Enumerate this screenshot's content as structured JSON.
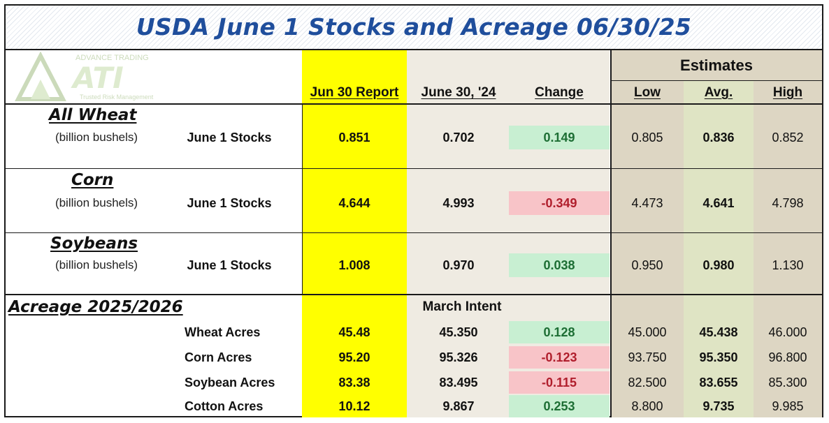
{
  "title": "USDA June 1 Stocks and Acreage 06/30/25",
  "logo": {
    "text_top": "ADVANCE TRADING",
    "text_main": "ATI",
    "text_bottom": "Trusted Risk Management"
  },
  "headers": {
    "estimates": "Estimates",
    "report": "Jun 30 Report",
    "prior": "June 30, '24",
    "change": "Change",
    "low": "Low",
    "avg": "Avg.",
    "high": "High"
  },
  "stocks": [
    {
      "commodity": "All Wheat",
      "unit": "(billion bushels)",
      "label": "June 1 Stocks",
      "report": "0.851",
      "prior": "0.702",
      "change": "0.149",
      "change_dir": "pos",
      "low": "0.805",
      "avg": "0.836",
      "high": "0.852"
    },
    {
      "commodity": "Corn",
      "unit": "(billion bushels)",
      "label": "June 1 Stocks",
      "report": "4.644",
      "prior": "4.993",
      "change": "-0.349",
      "change_dir": "neg",
      "low": "4.473",
      "avg": "4.641",
      "high": "4.798"
    },
    {
      "commodity": "Soybeans",
      "unit": "(billion bushels)",
      "label": "June 1 Stocks",
      "report": "1.008",
      "prior": "0.970",
      "change": "0.038",
      "change_dir": "pos",
      "low": "0.950",
      "avg": "0.980",
      "high": "1.130"
    }
  ],
  "acreage": {
    "title": "Acreage 2025/2026",
    "prior_header": "March Intent",
    "rows": [
      {
        "label": "Wheat Acres",
        "report": "45.48",
        "prior": "45.350",
        "change": "0.128",
        "change_dir": "pos",
        "low": "45.000",
        "avg": "45.438",
        "high": "46.000"
      },
      {
        "label": "Corn Acres",
        "report": "95.20",
        "prior": "95.326",
        "change": "-0.123",
        "change_dir": "neg",
        "low": "93.750",
        "avg": "95.350",
        "high": "96.800"
      },
      {
        "label": "Soybean Acres",
        "report": "83.38",
        "prior": "83.495",
        "change": "-0.115",
        "change_dir": "neg",
        "low": "82.500",
        "avg": "83.655",
        "high": "85.300"
      },
      {
        "label": "Cotton Acres",
        "report": "10.12",
        "prior": "9.867",
        "change": "0.253",
        "change_dir": "pos",
        "low": "8.800",
        "avg": "9.735",
        "high": "9.985"
      }
    ]
  },
  "colors": {
    "title": "#1f4e9c",
    "report_column": "#ffff00",
    "prior_column": "#efebe2",
    "estimates_column": "#ddd6c3",
    "avg_column": "#dfe4c4",
    "change_positive": "#c8efd2",
    "change_negative": "#f8c4c8"
  }
}
